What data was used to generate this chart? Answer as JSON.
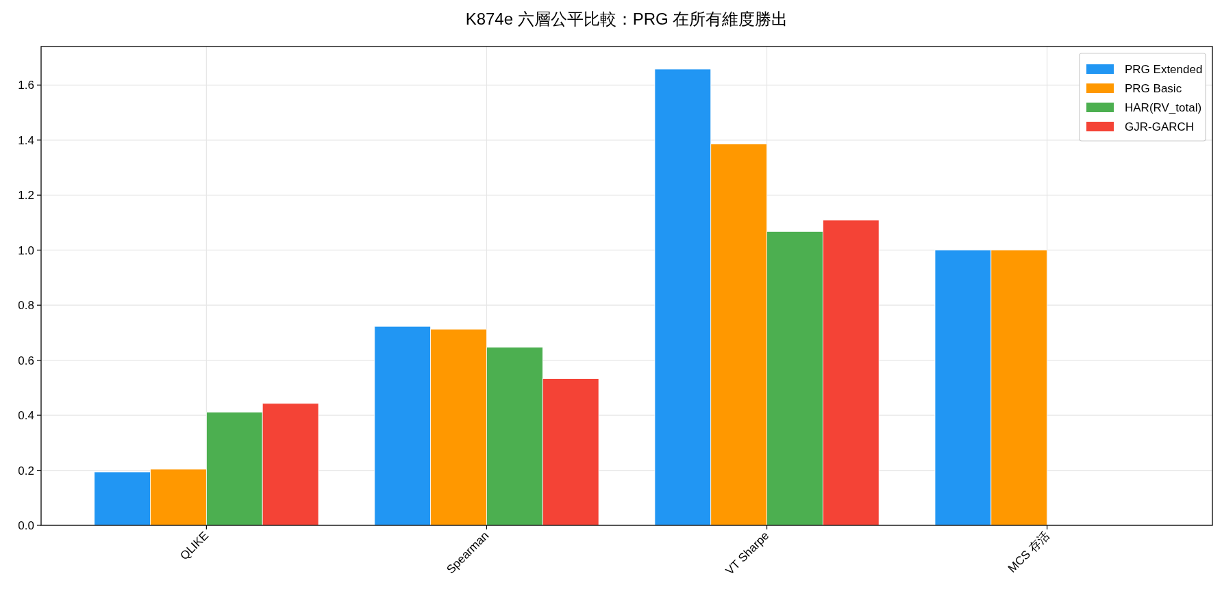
{
  "chart_data": {
    "type": "bar",
    "title": "K874e 六層公平比較：PRG 在所有維度勝出",
    "categories": [
      "QLIKE",
      "Spearman",
      "VT Sharpe",
      "MCS 存活"
    ],
    "series": [
      {
        "name": "PRG Extended",
        "color": "#2196f3",
        "values": [
          0.194,
          0.723,
          1.658,
          1.0
        ]
      },
      {
        "name": "PRG Basic",
        "color": "#ff9800",
        "values": [
          0.204,
          0.713,
          1.386,
          1.0
        ]
      },
      {
        "name": "HAR(RV_total)",
        "color": "#4caf50",
        "values": [
          0.411,
          0.647,
          1.068,
          0
        ]
      },
      {
        "name": "GJR-GARCH",
        "color": "#f44336",
        "values": [
          0.443,
          0.533,
          1.109,
          0
        ]
      }
    ],
    "ylim": [
      0,
      1.74
    ],
    "yticks": [
      {
        "value": 0,
        "label": "0.0"
      },
      {
        "value": 0.2,
        "label": "0.2"
      },
      {
        "value": 0.4,
        "label": "0.4"
      },
      {
        "value": 0.6,
        "label": "0.6"
      },
      {
        "value": 0.8,
        "label": "0.8"
      },
      {
        "value": 1.0,
        "label": "1.0"
      },
      {
        "value": 1.2,
        "label": "1.2"
      },
      {
        "value": 1.4,
        "label": "1.4"
      },
      {
        "value": 1.6,
        "label": "1.6"
      }
    ],
    "grid": true,
    "legend": "top right"
  }
}
